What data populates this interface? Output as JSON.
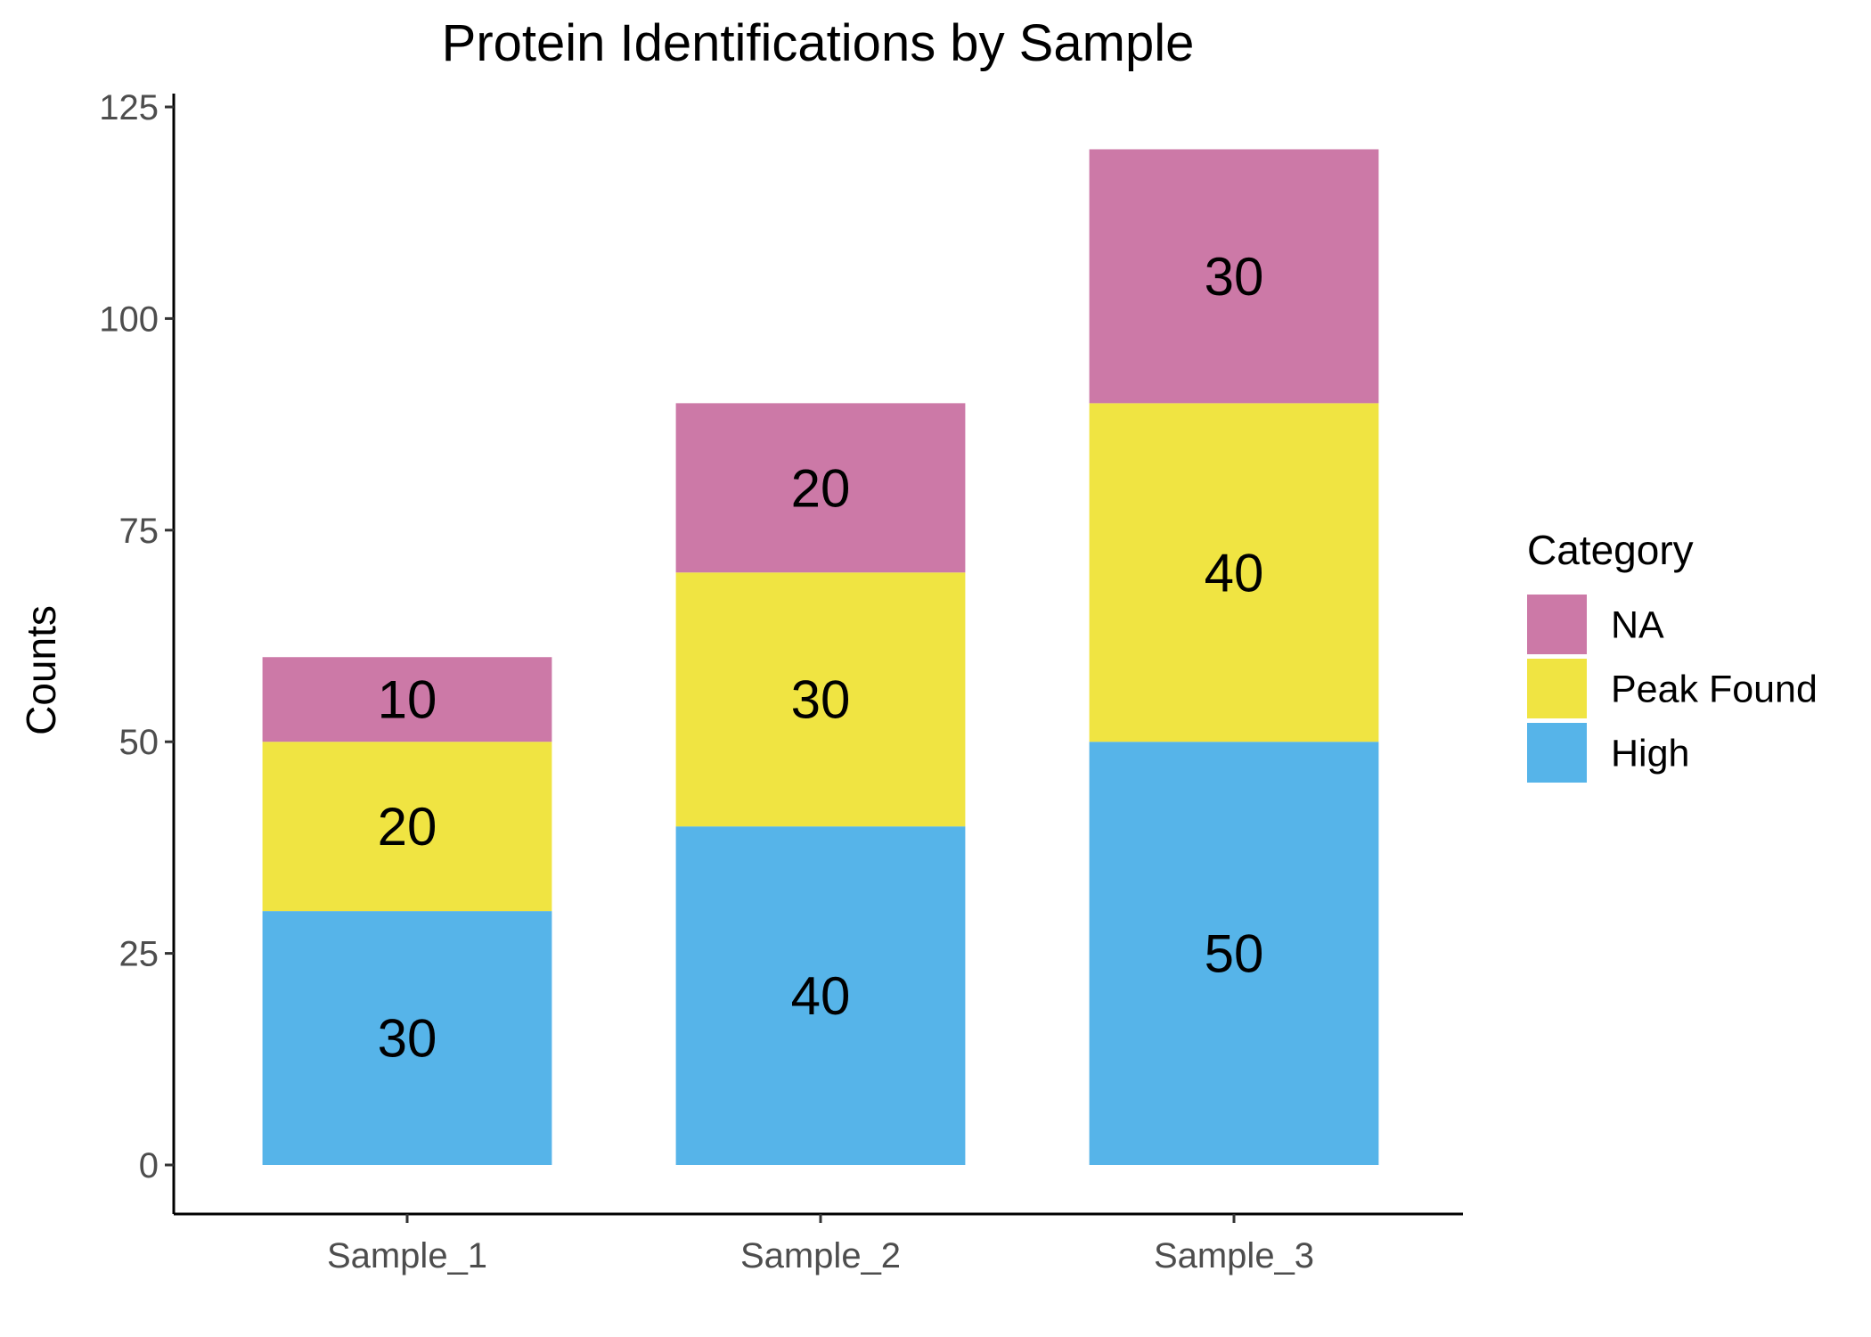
{
  "chart_data": {
    "type": "bar",
    "stacked": true,
    "title": "Protein Identifications by Sample",
    "xlabel": "",
    "ylabel": "Counts",
    "categories": [
      "Sample_1",
      "Sample_2",
      "Sample_3"
    ],
    "series": [
      {
        "name": "High",
        "values": [
          30,
          40,
          50
        ],
        "color": "#56B4E9"
      },
      {
        "name": "Peak Found",
        "values": [
          20,
          30,
          40
        ],
        "color": "#F0E442"
      },
      {
        "name": "NA",
        "values": [
          10,
          20,
          30
        ],
        "color": "#CC79A7"
      }
    ],
    "ylim": [
      0,
      125
    ],
    "yticks": [
      0,
      25,
      50,
      75,
      100,
      125
    ],
    "grid": false,
    "data_labels": true,
    "legend": {
      "title": "Category",
      "placement": "right",
      "order": [
        "NA",
        "Peak Found",
        "High"
      ]
    }
  }
}
